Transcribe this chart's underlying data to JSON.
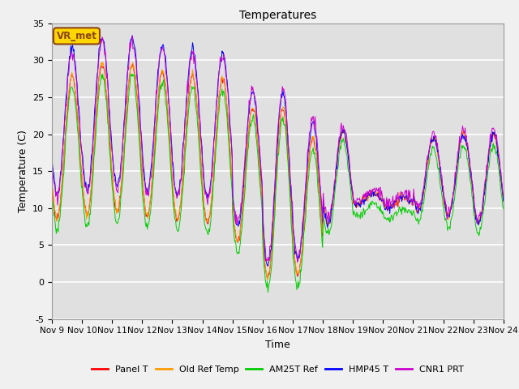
{
  "title": "Temperatures",
  "xlabel": "Time",
  "ylabel": "Temperature (C)",
  "ylim": [
    -5,
    35
  ],
  "yticks": [
    -5,
    0,
    5,
    10,
    15,
    20,
    25,
    30,
    35
  ],
  "xtick_labels": [
    "Nov 9",
    "Nov 10",
    "Nov 11",
    "Nov 12",
    "Nov 13",
    "Nov 14",
    "Nov 15",
    "Nov 16",
    "Nov 17",
    "Nov 18",
    "Nov 19",
    "Nov 20",
    "Nov 21",
    "Nov 22",
    "Nov 23",
    "Nov 24"
  ],
  "annotation": "VR_met",
  "bg_color": "#e0e0e0",
  "fig_bg_color": "#f0f0f0",
  "lines": [
    {
      "label": "Panel T",
      "color": "#ff0000"
    },
    {
      "label": "Old Ref Temp",
      "color": "#ff9900"
    },
    {
      "label": "AM25T Ref",
      "color": "#00cc00"
    },
    {
      "label": "HMP45 T",
      "color": "#0000ff"
    },
    {
      "label": "CNR1 PRT",
      "color": "#cc00cc"
    }
  ],
  "n_days": 15,
  "pts_per_day": 48
}
